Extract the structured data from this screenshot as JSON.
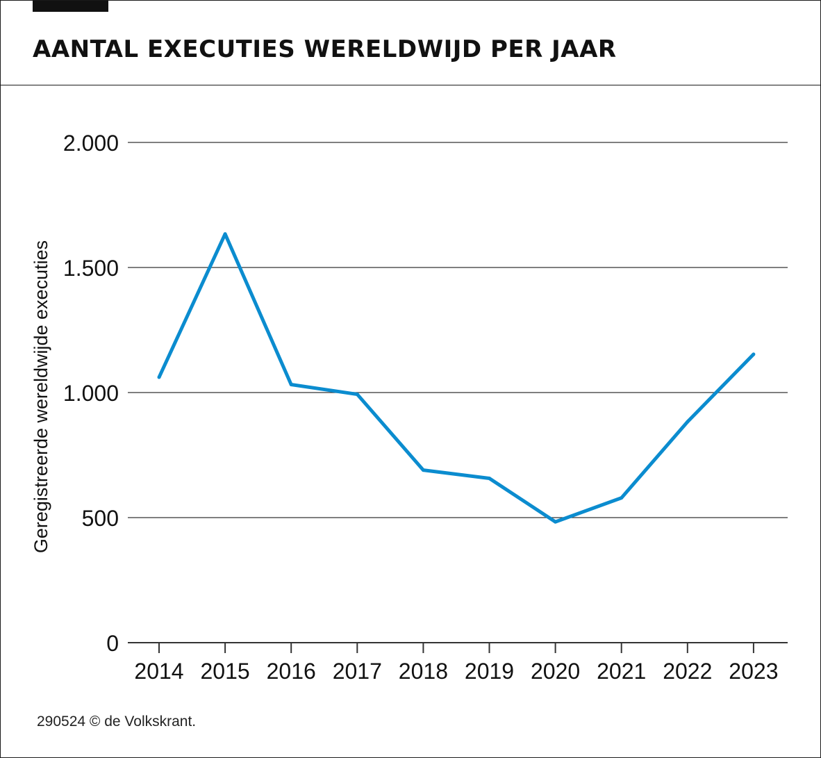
{
  "header": {
    "title": "AANTAL EXECUTIES WERELDWIJD PER JAAR"
  },
  "footer": {
    "credit": "290524 © de Volkskrant."
  },
  "colors": {
    "line": "#0b8ccf",
    "grid": "#333333",
    "text": "#111111"
  },
  "chart_data": {
    "type": "line",
    "title": "AANTAL EXECUTIES WERELDWIJD PER JAAR",
    "xlabel": "",
    "ylabel": "Geregistreerde wereldwijde executies",
    "categories": [
      "2014",
      "2015",
      "2016",
      "2017",
      "2018",
      "2019",
      "2020",
      "2021",
      "2022",
      "2023"
    ],
    "series": [
      {
        "name": "Geregistreerde wereldwijde executies",
        "values": [
          1061,
          1634,
          1032,
          993,
          690,
          657,
          483,
          579,
          883,
          1153
        ]
      }
    ],
    "ylim": [
      0,
      2000
    ],
    "yticks": [
      0,
      500,
      1000,
      1500,
      2000
    ],
    "ytick_labels": [
      "0",
      "500",
      "1.000",
      "1.500",
      "2.000"
    ],
    "grid": true,
    "legend": "none"
  }
}
